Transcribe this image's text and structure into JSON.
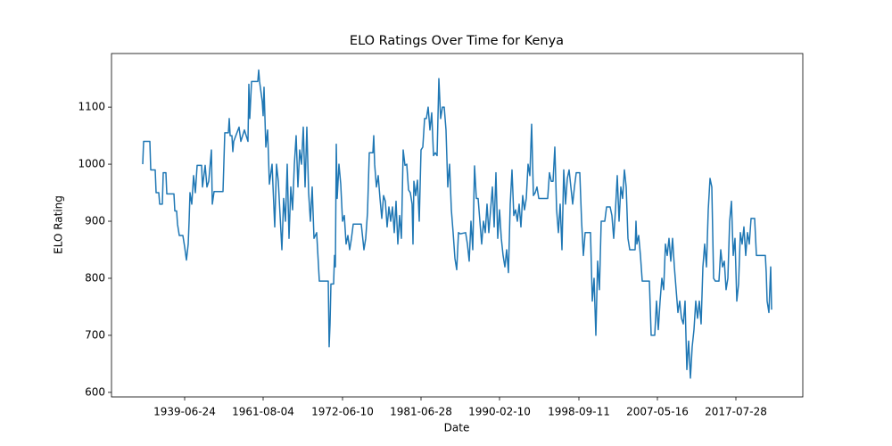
{
  "chart_data": {
    "type": "line",
    "title": "ELO Ratings Over Time for Kenya",
    "x_label": "Date",
    "y_label": "ELO Rating",
    "xlim": [
      125,
      900
    ],
    "ylim": [
      592,
      1194
    ],
    "xticks": [
      {
        "value": 207,
        "label": "1939-06-24"
      },
      {
        "value": 295,
        "label": "1961-08-04"
      },
      {
        "value": 384,
        "label": "1972-06-10"
      },
      {
        "value": 472,
        "label": "1981-06-28"
      },
      {
        "value": 560,
        "label": "1990-02-10"
      },
      {
        "value": 649,
        "label": "1998-09-11"
      },
      {
        "value": 737,
        "label": "2007-05-16"
      },
      {
        "value": 825,
        "label": "2017-07-28"
      }
    ],
    "yticks": [
      600,
      700,
      800,
      900,
      1000,
      1100
    ],
    "grid": false,
    "series": [
      {
        "name": "Kenya",
        "color": "#1f77b4",
        "x": [
          160,
          161,
          168,
          169,
          174,
          175,
          178,
          179,
          182,
          183,
          186,
          187,
          195,
          196,
          198,
          199,
          201,
          205,
          207,
          209,
          211,
          212,
          213,
          215,
          217,
          219,
          221,
          226,
          227,
          230,
          232,
          234,
          237,
          238,
          240,
          250,
          252,
          256,
          257,
          258,
          260,
          261,
          262,
          268,
          270,
          274,
          278,
          279,
          280,
          282,
          289,
          290,
          291,
          294,
          295,
          296,
          298,
          300,
          302,
          305,
          308,
          310,
          312,
          316,
          318,
          320,
          322,
          324,
          326,
          328,
          330,
          332,
          334,
          336,
          338,
          340,
          342,
          344,
          346,
          348,
          350,
          352,
          355,
          358,
          368,
          369,
          370,
          371,
          374,
          375,
          376,
          377,
          378,
          380,
          382,
          384,
          386,
          388,
          390,
          392,
          394,
          396,
          405,
          406,
          408,
          410,
          412,
          414,
          418,
          419,
          420,
          422,
          424,
          426,
          428,
          430,
          432,
          434,
          436,
          438,
          440,
          442,
          444,
          446,
          448,
          450,
          452,
          454,
          456,
          458,
          460,
          462,
          463,
          464,
          466,
          468,
          470,
          472,
          474,
          476,
          478,
          480,
          482,
          484,
          486,
          488,
          490,
          492,
          494,
          496,
          498,
          500,
          502,
          504,
          506,
          508,
          510,
          512,
          514,
          516,
          522,
          524,
          526,
          528,
          530,
          532,
          534,
          536,
          538,
          540,
          542,
          544,
          546,
          548,
          550,
          552,
          554,
          556,
          558,
          560,
          562,
          564,
          566,
          568,
          570,
          572,
          574,
          576,
          578,
          580,
          582,
          584,
          586,
          588,
          590,
          592,
          594,
          596,
          598,
          600,
          602,
          604,
          614,
          616,
          618,
          620,
          622,
          624,
          626,
          628,
          630,
          632,
          634,
          636,
          638,
          640,
          642,
          644,
          646,
          650,
          652,
          654,
          656,
          662,
          664,
          666,
          668,
          670,
          672,
          674,
          678,
          680,
          684,
          686,
          688,
          690,
          692,
          694,
          696,
          698,
          700,
          702,
          704,
          706,
          712,
          713,
          714,
          716,
          718,
          720,
          728,
          730,
          734,
          736,
          738,
          740,
          742,
          744,
          746,
          748,
          750,
          752,
          754,
          756,
          758,
          760,
          762,
          764,
          766,
          768,
          770,
          772,
          774,
          776,
          778,
          780,
          782,
          784,
          786,
          788,
          790,
          792,
          794,
          796,
          798,
          800,
          802,
          806,
          808,
          810,
          812,
          814,
          816,
          818,
          820,
          822,
          824,
          826,
          828,
          830,
          832,
          834,
          836,
          838,
          840,
          842,
          846,
          848,
          858,
          859,
          860,
          862,
          864,
          865
        ],
        "values": [
          1000,
          1040,
          1040,
          990,
          990,
          950,
          950,
          930,
          930,
          985,
          985,
          948,
          948,
          918,
          918,
          895,
          875,
          875,
          855,
          832,
          860,
          900,
          950,
          930,
          980,
          950,
          998,
          998,
          960,
          998,
          960,
          970,
          1025,
          930,
          952,
          952,
          1055,
          1055,
          1080,
          1050,
          1050,
          1022,
          1040,
          1065,
          1040,
          1060,
          1040,
          1140,
          1080,
          1145,
          1145,
          1165,
          1145,
          1110,
          1085,
          1135,
          1030,
          1060,
          965,
          1000,
          890,
          1000,
          970,
          850,
          940,
          900,
          1000,
          870,
          960,
          920,
          1000,
          1050,
          960,
          1025,
          1000,
          1065,
          960,
          1065,
          950,
          900,
          960,
          870,
          880,
          795,
          795,
          680,
          720,
          790,
          790,
          840,
          820,
          1035,
          940,
          1000,
          965,
          900,
          910,
          860,
          875,
          850,
          870,
          895,
          895,
          880,
          850,
          870,
          915,
          1020,
          1020,
          1050,
          1000,
          960,
          980,
          940,
          905,
          945,
          935,
          890,
          925,
          900,
          925,
          880,
          935,
          860,
          910,
          870,
          1025,
          998,
          1000,
          955,
          950,
          930,
          860,
          970,
          945,
          972,
          900,
          1025,
          1030,
          1080,
          1080,
          1100,
          1060,
          1090,
          1015,
          1020,
          1015,
          1150,
          1080,
          1100,
          1100,
          1060,
          960,
          1000,
          920,
          880,
          835,
          815,
          880,
          878,
          880,
          860,
          830,
          900,
          850,
          997,
          940,
          940,
          900,
          860,
          900,
          880,
          930,
          880,
          920,
          960,
          890,
          985,
          870,
          920,
          870,
          840,
          820,
          850,
          810,
          930,
          990,
          910,
          920,
          900,
          930,
          890,
          945,
          920,
          940,
          1000,
          980,
          1070,
          945,
          950,
          960,
          940,
          940,
          985,
          970,
          970,
          1030,
          920,
          880,
          930,
          850,
          990,
          930,
          975,
          990,
          960,
          930,
          960,
          985,
          985,
          900,
          840,
          880,
          880,
          760,
          800,
          700,
          830,
          780,
          900,
          900,
          925,
          925,
          910,
          870,
          920,
          980,
          900,
          960,
          940,
          990,
          960,
          870,
          850,
          850,
          900,
          860,
          875,
          840,
          795,
          795,
          700,
          700,
          760,
          710,
          760,
          800,
          780,
          860,
          840,
          870,
          830,
          870,
          820,
          780,
          740,
          760,
          730,
          720,
          760,
          640,
          690,
          625,
          680,
          710,
          760,
          730,
          760,
          720,
          820,
          860,
          820,
          920,
          975,
          960,
          800,
          795,
          795,
          850,
          820,
          830,
          780,
          800,
          900,
          935,
          840,
          870,
          760,
          790,
          880,
          860,
          890,
          840,
          880,
          860,
          905,
          905,
          840,
          840,
          810,
          760,
          740,
          820,
          745
        ]
      }
    ]
  }
}
